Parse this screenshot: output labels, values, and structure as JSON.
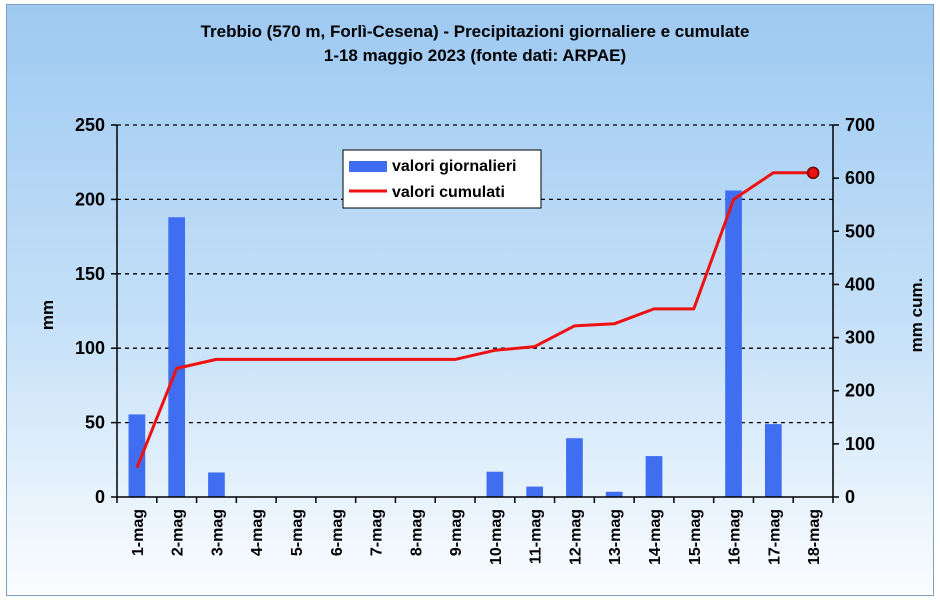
{
  "chart_data": {
    "type": "bar",
    "title": "Trebbio (570 m, Forlì-Cesena) - Precipitazioni giornaliere e cumulate",
    "subtitle": "1-18 maggio 2023 (fonte dati: ARPAE)",
    "ylabel": "mm",
    "y2label": "mm cum.",
    "ylim": [
      0,
      250
    ],
    "y2lim": [
      0,
      700
    ],
    "yticks": [
      0,
      50,
      100,
      150,
      200,
      250
    ],
    "y2ticks": [
      0,
      100,
      200,
      300,
      400,
      500,
      600,
      700
    ],
    "grid": "horizontal dashed",
    "legend_position": "top-center",
    "categories": [
      "1-mag",
      "2-mag",
      "3-mag",
      "4-mag",
      "5-mag",
      "6-mag",
      "7-mag",
      "8-mag",
      "9-mag",
      "10-mag",
      "11-mag",
      "12-mag",
      "13-mag",
      "14-mag",
      "15-mag",
      "16-mag",
      "17-mag",
      "18-mag"
    ],
    "series": [
      {
        "name": "valori giornalieri",
        "type": "bar",
        "axis": "left",
        "color": "#3f6ff0",
        "values": [
          55.5,
          188,
          16.5,
          0,
          0,
          0,
          0,
          0,
          0,
          17,
          7,
          39.5,
          3.5,
          27.5,
          0,
          206,
          49,
          0
        ]
      },
      {
        "name": "valori cumulati",
        "type": "line",
        "axis": "right",
        "color": "#ee1111",
        "values": [
          55,
          242,
          259,
          259,
          259,
          259,
          259,
          259,
          259,
          276,
          283,
          322,
          326,
          354,
          354,
          560,
          610,
          610
        ]
      }
    ]
  }
}
